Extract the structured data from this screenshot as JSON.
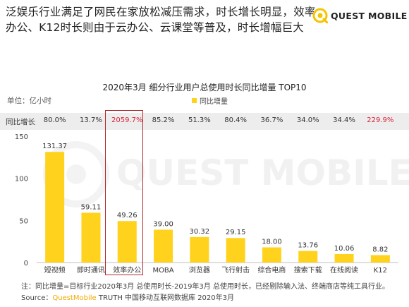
{
  "headline": {
    "line1": "泛娱乐行业满足了网民在家放松减压需求，时长增长明显，效率",
    "line2": "办公、K12时长则由于云办公、云课堂等普及，时长增幅巨大"
  },
  "brand": {
    "name": "QUEST MOBILE"
  },
  "watermark": "QUEST MOBILE",
  "colors": {
    "bar": "#FFD21E",
    "highlight": "#B3262A",
    "band": "#EDEDED",
    "positive_strong": "#D7263D"
  },
  "chart_data": {
    "type": "bar",
    "title": "2020年3月 细分行业用户总使用时长同比增量 TOP10",
    "unit_label": "单位：亿小时",
    "legend": [
      "同比增量"
    ],
    "legend_position": "top-center",
    "categories": [
      "短视频",
      "即时通讯",
      "效率办公",
      "MOBA",
      "浏览器",
      "飞行射击",
      "综合电商",
      "搜索下载",
      "在线阅读",
      "K12"
    ],
    "values": [
      131.37,
      59.11,
      49.26,
      39.0,
      30.32,
      29.15,
      18.0,
      13.76,
      10.06,
      8.82
    ],
    "value_labels": [
      "131.37",
      "59.11",
      "49.26",
      "39.00",
      "30.32",
      "29.15",
      "18.00",
      "13.76",
      "10.06",
      "8.82"
    ],
    "ylim": [
      0,
      150
    ],
    "yticks": [
      0,
      50,
      100,
      150
    ],
    "grid": false,
    "growth_row": {
      "label": "同比增长",
      "values": [
        "80.0%",
        "13.7%",
        "2059.7%",
        "85.2%",
        "51.3%",
        "80.4%",
        "36.7%",
        "34.0%",
        "34.4%",
        "229.9%"
      ],
      "emphasized": [
        false,
        false,
        true,
        false,
        false,
        false,
        false,
        false,
        false,
        true
      ]
    },
    "highlighted_category": "效率办公"
  },
  "notes": {
    "note": "注：同比增量=目标行业2020年3月 总使用时长-2019年3月 总使用时长，已经剔除输入法、终端商店等纯工具行业。",
    "source_prefix": "Source：",
    "source_brand": "QuestMobile",
    "source_rest": " TRUTH 中国移动互联网数据库 2020年3月"
  }
}
